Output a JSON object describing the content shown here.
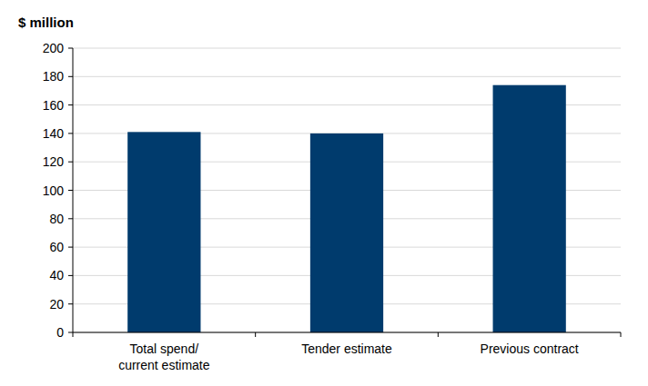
{
  "chart_data": {
    "type": "bar",
    "y_label": "$ million",
    "categories": [
      "Total spend/\ncurrent estimate",
      "Tender estimate",
      "Previous contract"
    ],
    "values": [
      141,
      140,
      174
    ],
    "color": "#003b6d",
    "ylim": [
      0,
      200
    ],
    "yticks": [
      0,
      20,
      40,
      60,
      80,
      100,
      120,
      140,
      160,
      180,
      200
    ],
    "grid": true
  }
}
